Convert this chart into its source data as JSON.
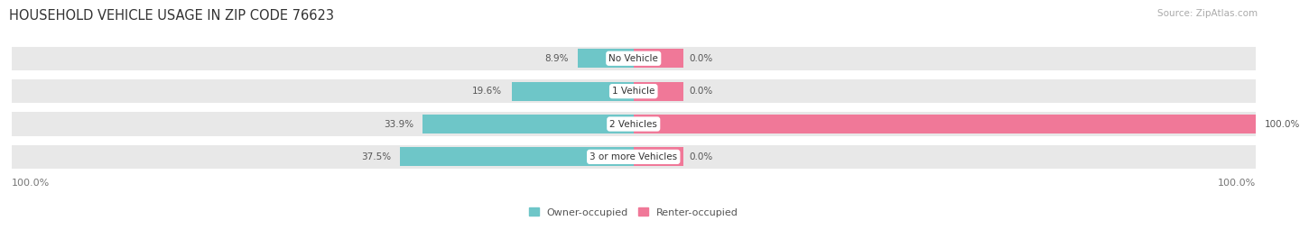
{
  "title": "HOUSEHOLD VEHICLE USAGE IN ZIP CODE 76623",
  "source": "Source: ZipAtlas.com",
  "categories": [
    "No Vehicle",
    "1 Vehicle",
    "2 Vehicles",
    "3 or more Vehicles"
  ],
  "owner_values": [
    8.9,
    19.6,
    33.9,
    37.5
  ],
  "renter_values": [
    0.0,
    0.0,
    100.0,
    0.0
  ],
  "owner_color": "#6ec6c8",
  "renter_color": "#f07898",
  "bar_bg_color": "#e8e8e8",
  "owner_label": "Owner-occupied",
  "renter_label": "Renter-occupied",
  "title_fontsize": 10.5,
  "source_fontsize": 7.5,
  "legend_fontsize": 8,
  "cat_fontsize": 7.5,
  "val_fontsize": 7.5,
  "background_color": "#ffffff",
  "xlim": 100.0,
  "scale": 100.0
}
